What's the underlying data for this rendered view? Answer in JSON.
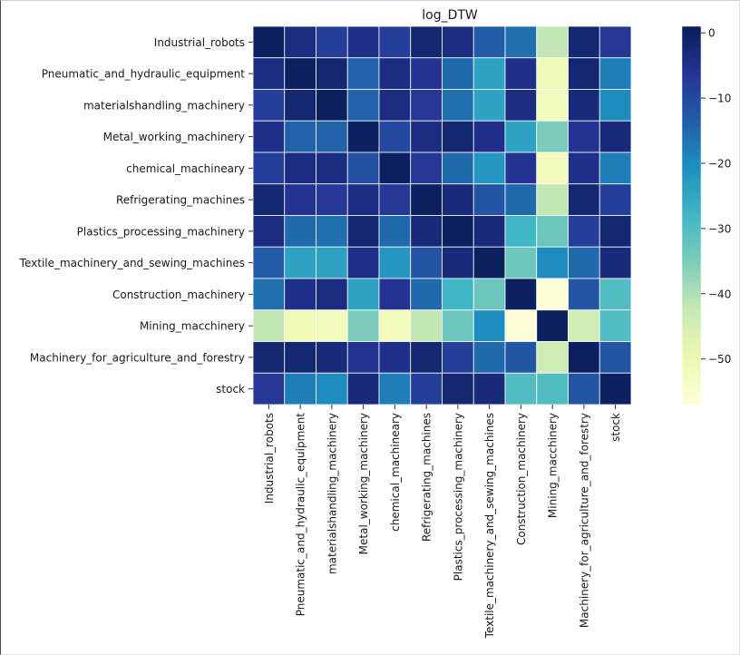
{
  "chart_data": {
    "type": "heatmap",
    "title": "log_DTW",
    "xlabel": "",
    "ylabel": "",
    "labels": [
      "Industrial_robots",
      "Pneumatic_and_hydraulic_equipment",
      "materialshandling_machinery",
      "Metal_working_machinery",
      "chemical_machineary",
      "Refrigerating_machines",
      "Plastics_processing_machinery",
      "Textile_machinery_and_sewing_machines",
      "Construction_machinery",
      "Mining_macchinery",
      "Machinery_for_agriculture_and_forestry",
      "stock"
    ],
    "matrix": [
      [
        0,
        -4,
        -8,
        -5,
        -8,
        -2,
        -4,
        -13,
        -16,
        -42,
        -2,
        -7
      ],
      [
        -4,
        0,
        -2,
        -14,
        -4,
        -6,
        -15,
        -24,
        -5,
        -51,
        -2,
        -18
      ],
      [
        -8,
        -2,
        0,
        -14,
        -4,
        -7,
        -16,
        -24,
        -4,
        -52,
        -3,
        -20
      ],
      [
        -5,
        -14,
        -14,
        0,
        -10,
        -4,
        -2,
        -5,
        -24,
        -35,
        -6,
        -3
      ],
      [
        -8,
        -4,
        -4,
        -11,
        0,
        -7,
        -15,
        -22,
        -6,
        -52,
        -5,
        -18
      ],
      [
        -2,
        -6,
        -7,
        -4,
        -7,
        0,
        -3,
        -12,
        -15,
        -42,
        -2,
        -8
      ],
      [
        -4,
        -15,
        -16,
        -2,
        -15,
        -3,
        0,
        -3,
        -28,
        -33,
        -8,
        -2
      ],
      [
        -13,
        -24,
        -24,
        -5,
        -22,
        -12,
        -3,
        0,
        -33,
        -20,
        -15,
        -3
      ],
      [
        -16,
        -5,
        -4,
        -24,
        -6,
        -15,
        -28,
        -33,
        0,
        -57,
        -12,
        -30
      ],
      [
        -42,
        -51,
        -52,
        -35,
        -52,
        -42,
        -33,
        -20,
        -57,
        0,
        -44,
        -30
      ],
      [
        -2,
        -2,
        -3,
        -6,
        -5,
        -2,
        -8,
        -15,
        -12,
        -44,
        0,
        -12
      ],
      [
        -7,
        -18,
        -20,
        -3,
        -18,
        -8,
        -2,
        -3,
        -30,
        -30,
        -12,
        0
      ]
    ],
    "vmin": -57,
    "vmax": 1,
    "colormap": "YlGnBu",
    "colorbar_ticks": [
      0,
      -10,
      -20,
      -30,
      -40,
      -50
    ],
    "colorbar_tick_labels": [
      "0",
      "−10",
      "−20",
      "−30",
      "−40",
      "−50"
    ],
    "grid": false,
    "legend": "colorbar-right"
  }
}
